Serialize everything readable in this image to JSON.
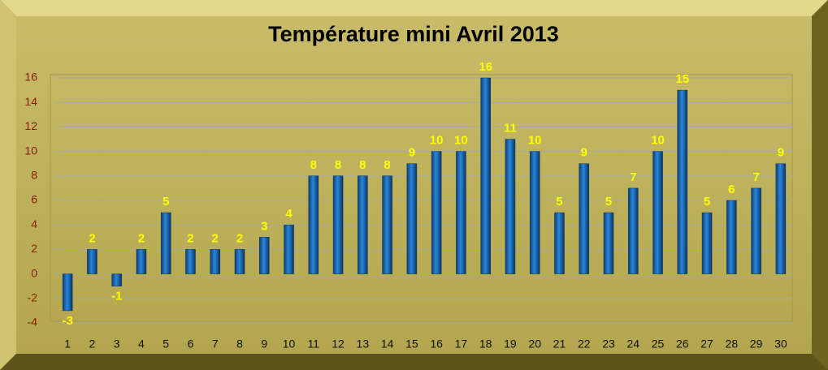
{
  "chart_data": {
    "type": "bar",
    "title": "Température mini Avril 2013",
    "categories": [
      "1",
      "2",
      "3",
      "4",
      "5",
      "6",
      "7",
      "8",
      "9",
      "10",
      "11",
      "12",
      "13",
      "14",
      "15",
      "16",
      "17",
      "18",
      "19",
      "20",
      "21",
      "22",
      "23",
      "24",
      "25",
      "26",
      "27",
      "28",
      "29",
      "30"
    ],
    "values": [
      -3,
      2,
      -1,
      2,
      5,
      2,
      2,
      2,
      3,
      4,
      8,
      8,
      8,
      8,
      9,
      10,
      10,
      16,
      11,
      10,
      5,
      9,
      5,
      7,
      10,
      15,
      5,
      6,
      7,
      9
    ],
    "color": "#1a6fc4",
    "ylim": [
      -4,
      16
    ],
    "yticks": [
      -4,
      -2,
      0,
      2,
      4,
      6,
      8,
      10,
      12,
      14,
      16
    ],
    "grid": true
  }
}
